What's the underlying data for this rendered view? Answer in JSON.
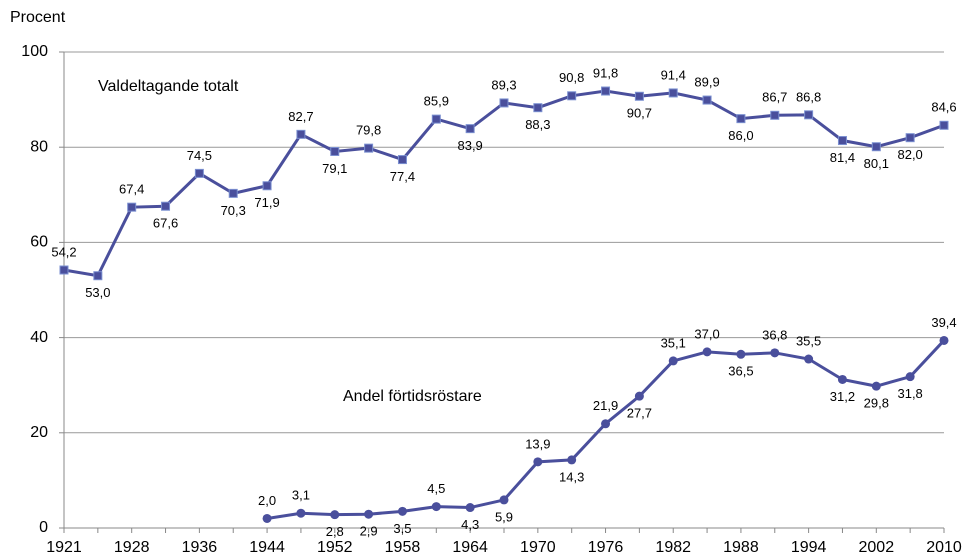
{
  "chart_data": {
    "type": "line",
    "y_label": "Procent",
    "categories": [
      "1921",
      null,
      "1928",
      null,
      "1936",
      null,
      "1944",
      null,
      "1952",
      null,
      "1958",
      null,
      "1964",
      null,
      "1970",
      null,
      "1976",
      null,
      "1982",
      null,
      "1988",
      null,
      "1994",
      null,
      "2002",
      null,
      "2010"
    ],
    "series": [
      {
        "name": "Valdeltagande totalt",
        "color": "#4a4f9c",
        "marker": "square",
        "values": [
          54.2,
          53.0,
          67.4,
          67.6,
          74.5,
          70.3,
          71.9,
          82.7,
          79.1,
          79.8,
          77.4,
          85.9,
          83.9,
          89.3,
          88.3,
          90.8,
          91.8,
          90.7,
          91.4,
          89.9,
          86.0,
          86.7,
          86.8,
          81.4,
          80.1,
          82.0,
          84.6
        ],
        "value_labels": [
          "54,2",
          "53,0",
          "67,4",
          "67,6",
          "74,5",
          "70,3",
          "71,9",
          "82,7",
          "79,1",
          "79,8",
          "77,4",
          "85,9",
          "83,9",
          "89,3",
          "88,3",
          "90,8",
          "91,8",
          "90,7",
          "91,4",
          "89,9",
          "86,0",
          "86,7",
          "86,8",
          "81,4",
          "80,1",
          "82,0",
          "84,6"
        ]
      },
      {
        "name": "Andel förtidsröstare",
        "color": "#4a4f9c",
        "marker": "circle",
        "values": [
          null,
          null,
          null,
          null,
          null,
          null,
          2.0,
          3.1,
          2.8,
          2.9,
          3.5,
          4.5,
          4.3,
          5.9,
          13.9,
          14.3,
          21.9,
          27.7,
          35.1,
          37.0,
          36.5,
          36.8,
          35.5,
          31.2,
          29.8,
          31.8,
          39.4
        ],
        "value_labels": [
          null,
          null,
          null,
          null,
          null,
          null,
          "2,0",
          "3,1",
          "2,8",
          "2,9",
          "3,5",
          "4,5",
          "4,3",
          "5,9",
          "13,9",
          "14,3",
          "21,9",
          "27,7",
          "35,1",
          "37,0",
          "36,5",
          "36,8",
          "35,5",
          "31,2",
          "29,8",
          "31,8",
          "39,4"
        ]
      }
    ],
    "ylim": [
      0,
      100
    ],
    "yticks": [
      0,
      20,
      40,
      60,
      80,
      100
    ],
    "grid": true
  }
}
